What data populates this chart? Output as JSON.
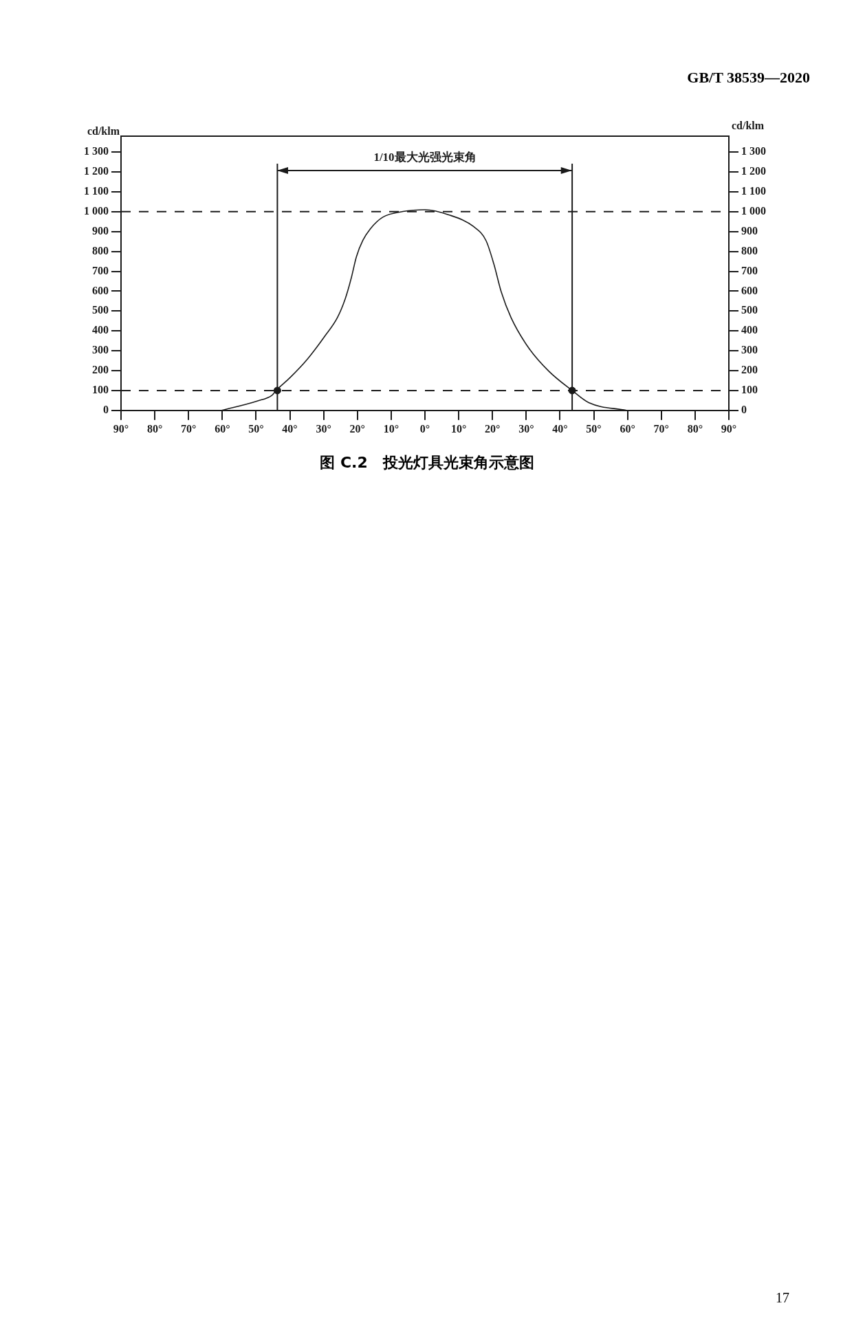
{
  "chart_data": {
    "type": "line",
    "title": "图 C.2　投光灯具光束角示意图",
    "ylabel": "cd/klm",
    "y2label": "cd/klm",
    "annotations": [
      "GB/T 38539—2020",
      "17",
      "1/10最大光强光束角"
    ],
    "series": [
      {
        "type": "line",
        "color": "#1a1a1a",
        "marker": "none",
        "x": [
          -60.2,
          -49.7,
          -45.3,
          -43.8,
          -40,
          -34.8,
          -29.6,
          -25.9,
          -23.6,
          -21.8,
          -20.3,
          -18.4,
          -16.2,
          -12.5,
          -6.5,
          0,
          6.9,
          14.4,
          18.1,
          20.4,
          22.6,
          25.5,
          30.7,
          36.7,
          43.6,
          48.5,
          59.7
        ],
        "values": [
          0,
          47,
          76,
          105,
          164,
          258,
          375,
          468,
          562,
          667,
          773,
          855,
          913,
          972,
          1001,
          1010,
          985,
          925,
          854,
          737,
          596,
          467,
          315,
          197,
          100,
          39,
          0
        ]
      },
      {
        "type": "scatter",
        "color": "#1a1a1a",
        "marker": "circle",
        "x": [
          -43.7,
          43.6
        ],
        "values": [
          100,
          100
        ]
      }
    ],
    "ref_lines": [
      {
        "axis": "y",
        "value": 1000,
        "line_style": "dashed"
      },
      {
        "axis": "y",
        "value": 100,
        "line_style": "dashed"
      },
      {
        "axis": "x",
        "value": -43.7,
        "line_style": "solid"
      },
      {
        "axis": "x",
        "value": 43.6,
        "line_style": "solid"
      }
    ],
    "xlim": [
      -90,
      90
    ],
    "xticks": [
      {
        "value": -90,
        "label": "90°"
      },
      {
        "value": -80,
        "label": "80°"
      },
      {
        "value": -70,
        "label": "70°"
      },
      {
        "value": -60,
        "label": "60°"
      },
      {
        "value": -50,
        "label": "50°"
      },
      {
        "value": -40,
        "label": "40°"
      },
      {
        "value": -30,
        "label": "30°"
      },
      {
        "value": -20,
        "label": "20°"
      },
      {
        "value": -10,
        "label": "10°"
      },
      {
        "value": 0,
        "label": "0°"
      },
      {
        "value": 10,
        "label": "10°"
      },
      {
        "value": 20,
        "label": "20°"
      },
      {
        "value": 30,
        "label": "30°"
      },
      {
        "value": 40,
        "label": "40°"
      },
      {
        "value": 50,
        "label": "50°"
      },
      {
        "value": 60,
        "label": "60°"
      },
      {
        "value": 70,
        "label": "70°"
      },
      {
        "value": 80,
        "label": "80°"
      },
      {
        "value": 90,
        "label": "90°"
      }
    ],
    "ylim": [
      0,
      1380
    ],
    "yticks": [
      0,
      100,
      200,
      300,
      400,
      500,
      600,
      700,
      800,
      900,
      {
        "value": 1000,
        "label": "1 000"
      },
      {
        "value": 1100,
        "label": "1 100"
      },
      {
        "value": 1200,
        "label": "1 200"
      },
      {
        "value": 1300,
        "label": "1 300"
      }
    ],
    "y2lim": [
      0,
      1380
    ],
    "y2ticks": [
      0,
      100,
      200,
      300,
      400,
      500,
      600,
      700,
      800,
      900,
      {
        "value": 1000,
        "label": "1 000"
      },
      {
        "value": 1100,
        "label": "1 100"
      },
      {
        "value": 1200,
        "label": "1 200"
      },
      {
        "value": 1300,
        "label": "1 300"
      }
    ],
    "grid": false,
    "legend": false
  }
}
